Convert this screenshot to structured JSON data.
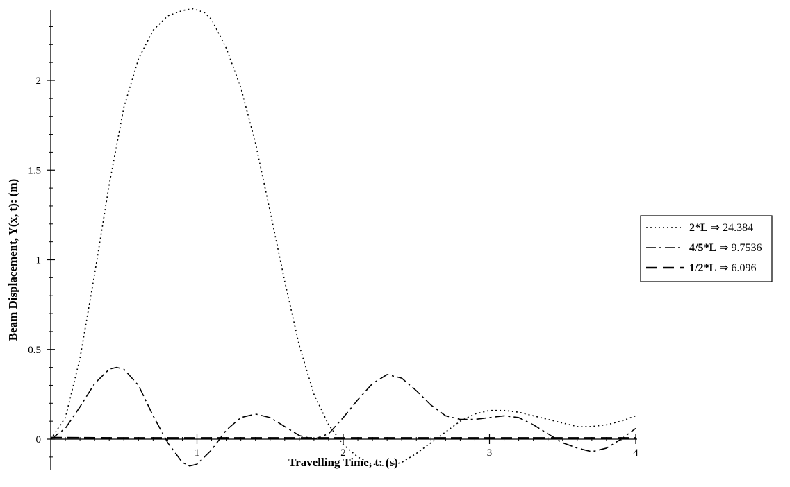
{
  "chart_data": {
    "type": "line",
    "xlabel": "Travelling Time, t: (s)",
    "ylabel": "Beam Displacement, Y(x, t): (m)",
    "xlim": [
      0,
      4
    ],
    "ylim": [
      -0.17,
      2.4
    ],
    "x_ticks": [
      "1",
      "2",
      "3",
      "4"
    ],
    "y_ticks": [
      "0",
      "0.5",
      "1",
      "1.5",
      "2"
    ],
    "x_tick_values": [
      1,
      2,
      3,
      4
    ],
    "y_tick_values": [
      0,
      0.5,
      1,
      1.5,
      2
    ],
    "legend_position": "right",
    "series": [
      {
        "name_bold": "2*L",
        "name_rest": " ⇒ 24.384",
        "style": "dotted",
        "color": "#000000",
        "x": [
          0,
          0.1,
          0.2,
          0.3,
          0.4,
          0.5,
          0.6,
          0.7,
          0.8,
          0.9,
          0.97,
          1.05,
          1.1,
          1.2,
          1.3,
          1.4,
          1.5,
          1.6,
          1.7,
          1.8,
          1.9,
          2.0,
          2.1,
          2.2,
          2.3,
          2.4,
          2.5,
          2.6,
          2.7,
          2.8,
          2.9,
          3.0,
          3.1,
          3.2,
          3.3,
          3.4,
          3.5,
          3.6,
          3.7,
          3.8,
          3.9,
          4.0
        ],
        "y": [
          0,
          0.12,
          0.45,
          0.92,
          1.42,
          1.85,
          2.12,
          2.28,
          2.36,
          2.39,
          2.4,
          2.38,
          2.34,
          2.18,
          1.96,
          1.65,
          1.27,
          0.88,
          0.52,
          0.25,
          0.08,
          -0.03,
          -0.1,
          -0.14,
          -0.15,
          -0.13,
          -0.08,
          -0.02,
          0.04,
          0.1,
          0.14,
          0.16,
          0.16,
          0.15,
          0.13,
          0.11,
          0.09,
          0.07,
          0.07,
          0.08,
          0.1,
          0.13
        ]
      },
      {
        "name_bold": "4/5*L",
        "name_rest": " ⇒ 9.7536",
        "style": "dashdot",
        "color": "#000000",
        "x": [
          0,
          0.1,
          0.2,
          0.3,
          0.4,
          0.45,
          0.5,
          0.6,
          0.7,
          0.8,
          0.9,
          0.95,
          1.0,
          1.1,
          1.2,
          1.3,
          1.4,
          1.5,
          1.6,
          1.7,
          1.8,
          1.9,
          2.0,
          2.1,
          2.2,
          2.3,
          2.4,
          2.5,
          2.6,
          2.7,
          2.8,
          2.9,
          3.0,
          3.1,
          3.2,
          3.3,
          3.4,
          3.5,
          3.6,
          3.7,
          3.8,
          3.9,
          4.0
        ],
        "y": [
          0,
          0.06,
          0.18,
          0.31,
          0.39,
          0.4,
          0.39,
          0.3,
          0.13,
          -0.02,
          -0.13,
          -0.15,
          -0.14,
          -0.06,
          0.05,
          0.12,
          0.14,
          0.12,
          0.07,
          0.02,
          0,
          0.03,
          0.12,
          0.22,
          0.31,
          0.36,
          0.34,
          0.27,
          0.19,
          0.13,
          0.11,
          0.11,
          0.12,
          0.13,
          0.12,
          0.08,
          0.03,
          -0.02,
          -0.05,
          -0.07,
          -0.05,
          0,
          0.06
        ]
      },
      {
        "name_bold": "1/2*L",
        "name_rest": " ⇒ 6.096",
        "style": "longdash",
        "color": "#000000",
        "x": [
          0,
          0.5,
          1.0,
          1.5,
          2.0,
          2.5,
          3.0,
          3.5,
          4.0
        ],
        "y": [
          0.008,
          0.006,
          0.006,
          0.006,
          0.006,
          0.006,
          0.006,
          0.006,
          0.006
        ]
      }
    ]
  }
}
